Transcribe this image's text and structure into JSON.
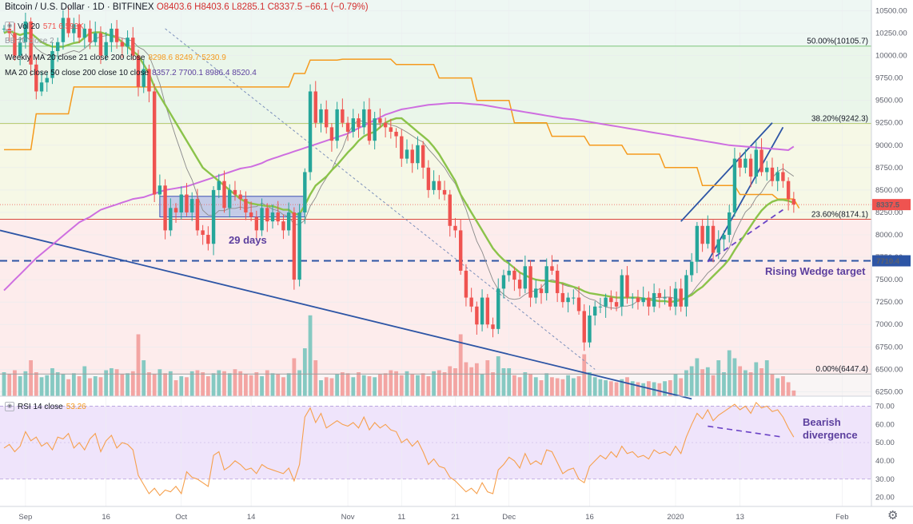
{
  "header": {
    "symbol": "Bitcoin / U.S. Dollar · 1D · BITFINEX",
    "open": "O8403.6",
    "high": "H8403.6",
    "low": "L8285.1",
    "close": "C8337.5",
    "change": "−66.1 (−0.79%)"
  },
  "indicators": [
    {
      "name": "Vol 20",
      "values": "571  6.593K"
    },
    {
      "name": "BB 20 close 2",
      "values": ""
    },
    {
      "name": "Weekly MA 20 close 21 close 200 close",
      "values": "8298.6  8249.7  5230.9"
    },
    {
      "name": "MA 20 close 50 close 200 close 10 close",
      "values": "8357.2  7700.1  8986.4  8520.4"
    }
  ],
  "rsi_legend": {
    "name": "RSI 14 close",
    "value": "53.26"
  },
  "annotations": {
    "days": "29 days",
    "wedge": "Rising Wedge target",
    "divergence_line1": "Bearish",
    "divergence_line2": "divergence"
  },
  "colors": {
    "up": "#26a69a",
    "down": "#ef5350",
    "ma20": "#8bc34a",
    "ma200": "#ce6ee0",
    "weekly": "#f59a1d",
    "trend": "#2d55a5",
    "rsi": "#f6a04d",
    "accent": "#5c3f9e"
  },
  "chart_data": {
    "type": "candlestick",
    "title": "Bitcoin / U.S. Dollar · 1D · BITFINEX",
    "y_axis": {
      "ylim": [
        6200,
        10620
      ],
      "ticks": [
        "10500.00",
        "10250.00",
        "10000.00",
        "9750.00",
        "9500.00",
        "9250.00",
        "9000.00",
        "8750.00",
        "8500.00",
        "8250.00",
        "8000.00",
        "7750.00",
        "7500.00",
        "7250.00",
        "7000.00",
        "6750.00",
        "6500.00",
        "6250.00"
      ]
    },
    "x_axis": {
      "ticks": [
        {
          "label": "Sep",
          "bar": 4
        },
        {
          "label": "16",
          "bar": 19
        },
        {
          "label": "Oct",
          "bar": 33
        },
        {
          "label": "14",
          "bar": 46
        },
        {
          "label": "Nov",
          "bar": 64
        },
        {
          "label": "11",
          "bar": 74
        },
        {
          "label": "21",
          "bar": 84
        },
        {
          "label": "Dec",
          "bar": 94
        },
        {
          "label": "16",
          "bar": 109
        },
        {
          "label": "2020",
          "bar": 125
        },
        {
          "label": "13",
          "bar": 137
        },
        {
          "label": "Feb",
          "bar": 156
        }
      ]
    },
    "fibonacci": [
      {
        "label": "50.00%(10105.7)",
        "value": 10105.7
      },
      {
        "label": "38.20%(9242.3)",
        "value": 9242.3
      },
      {
        "label": "23.60%(8174.1)",
        "value": 8174.1
      },
      {
        "label": "0.00%(6447.4)",
        "value": 6447.4
      }
    ],
    "price_labels": [
      {
        "label": "8337.5",
        "value": 8337.5
      },
      {
        "label": "7710.4",
        "value": 7710.4
      }
    ],
    "close": [
      10300,
      10250,
      10000,
      10150,
      10380,
      9900,
      9600,
      9700,
      9750,
      10050,
      10150,
      10420,
      10250,
      10350,
      10200,
      10300,
      10150,
      10250,
      10000,
      10150,
      10300,
      10150,
      10100,
      10200,
      10000,
      9650,
      9850,
      9600,
      8450,
      8550,
      8050,
      8300,
      8250,
      8450,
      8250,
      8400,
      8050,
      8000,
      7900,
      8500,
      8600,
      8300,
      8500,
      8450,
      8400,
      8250,
      8200,
      8050,
      8300,
      8150,
      8250,
      8150,
      8050,
      8250,
      7500,
      8250,
      8700,
      9600,
      9250,
      9400,
      9200,
      9050,
      9400,
      9250,
      9150,
      9300,
      9200,
      9400,
      9050,
      9300,
      9250,
      9200,
      9150,
      9100,
      8850,
      8950,
      8800,
      9000,
      8750,
      8500,
      8600,
      8500,
      8450,
      8100,
      8050,
      7600,
      7300,
      7200,
      7000,
      7300,
      7000,
      6950,
      7400,
      7550,
      7600,
      7500,
      7400,
      7650,
      7300,
      7400,
      7350,
      7650,
      7600,
      7350,
      7250,
      7300,
      7300,
      7150,
      6800,
      7100,
      7200,
      7200,
      7300,
      7250,
      7200,
      7550,
      7300,
      7300,
      7250,
      7300,
      7200,
      7350,
      7300,
      7300,
      7200,
      7400,
      7200,
      7550,
      7700,
      8100,
      7900,
      8100,
      7800,
      7950,
      8000,
      8250,
      8850,
      8750,
      8850,
      8650,
      8950,
      8700,
      8750,
      8600,
      8700,
      8600,
      8400,
      8337.5
    ],
    "volume_ylim": [
      0,
      12000
    ],
    "volume": [
      2400,
      2200,
      2600,
      2000,
      2500,
      3600,
      2400,
      1900,
      2100,
      2800,
      2400,
      2200,
      1700,
      2300,
      2000,
      3000,
      1800,
      2000,
      1900,
      2600,
      2800,
      2700,
      2200,
      2300,
      2500,
      6200,
      3600,
      2400,
      2200,
      2700,
      2300,
      2500,
      1600,
      2000,
      1900,
      2500,
      2600,
      2400,
      2000,
      2300,
      2600,
      2500,
      2300,
      2700,
      2500,
      2200,
      2100,
      2400,
      2000,
      2600,
      2300,
      2200,
      1900,
      2300,
      3800,
      2600,
      4800,
      8100,
      3600,
      1600,
      1900,
      1800,
      2200,
      2400,
      2300,
      1900,
      2400,
      2100,
      2000,
      1900,
      2200,
      2300,
      2600,
      2500,
      2100,
      2500,
      2200,
      2100,
      2300,
      2000,
      2500,
      2600,
      2400,
      3000,
      2800,
      6200,
      3400,
      2900,
      3300,
      2200,
      3600,
      2400,
      4000,
      2800,
      2800,
      2100,
      1900,
      2400,
      2200,
      1900,
      1600,
      2300,
      1900,
      1800,
      1700,
      2100,
      1800,
      2000,
      4200,
      2400,
      1900,
      1700,
      1600,
      1500,
      1400,
      1700,
      1900,
      1500,
      1400,
      1300,
      1500,
      1400,
      1300,
      1500,
      1600,
      2200,
      1800,
      2600,
      3000,
      3800,
      2700,
      2900,
      2100,
      3600,
      2400,
      4600,
      3800,
      3000,
      2600,
      2400,
      3400,
      2800,
      3600,
      2200,
      1800,
      2000,
      1400,
      571
    ],
    "ma20": [
      10250,
      10280,
      10250,
      10230,
      10250,
      10250,
      10200,
      10150,
      10120,
      10100,
      10100,
      10100,
      10120,
      10140,
      10150,
      10200,
      10250,
      10260,
      10260,
      10240,
      10220,
      10200,
      10150,
      10100,
      10050,
      10000,
      9900,
      9800,
      9650,
      9550,
      9450,
      9350,
      9250,
      9150,
      9050,
      8950,
      8850,
      8750,
      8700,
      8650,
      8600,
      8550,
      8500,
      8450,
      8400,
      8370,
      8350,
      8340,
      8330,
      8320,
      8320,
      8300,
      8280,
      8280,
      8230,
      8230,
      8330,
      8450,
      8550,
      8600,
      8650,
      8720,
      8780,
      8850,
      8920,
      8980,
      9050,
      9100,
      9130,
      9150,
      9200,
      9250,
      9280,
      9300,
      9300,
      9250,
      9200,
      9150,
      9100,
      9050,
      8980,
      8900,
      8800,
      8700,
      8600,
      8450,
      8350,
      8250,
      8150,
      8050,
      7950,
      7850,
      7780,
      7720,
      7680,
      7630,
      7580,
      7550,
      7520,
      7500,
      7490,
      7490,
      7480,
      7470,
      7460,
      7440,
      7420,
      7400,
      7370,
      7350,
      7340,
      7330,
      7320,
      7310,
      7300,
      7300,
      7300,
      7300,
      7300,
      7290,
      7280,
      7270,
      7260,
      7260,
      7250,
      7260,
      7270,
      7300,
      7330,
      7380,
      7420,
      7480,
      7540,
      7600,
      7660,
      7730,
      7830,
      7920,
      8010,
      8100,
      8190,
      8270,
      8330,
      8370,
      8390,
      8390,
      8380,
      8357
    ],
    "ma200": [
      7380,
      7440,
      7500,
      7560,
      7620,
      7680,
      7740,
      7790,
      7840,
      7890,
      7940,
      7990,
      8040,
      8090,
      8140,
      8170,
      8200,
      8240,
      8280,
      8300,
      8320,
      8340,
      8360,
      8380,
      8400,
      8410,
      8420,
      8440,
      8460,
      8480,
      8500,
      8510,
      8520,
      8530,
      8540,
      8560,
      8580,
      8600,
      8620,
      8640,
      8660,
      8680,
      8700,
      8720,
      8740,
      8750,
      8760,
      8780,
      8800,
      8830,
      8850,
      8870,
      8890,
      8910,
      8930,
      8950,
      8970,
      8990,
      9010,
      9030,
      9050,
      9070,
      9090,
      9110,
      9130,
      9160,
      9190,
      9220,
      9250,
      9280,
      9310,
      9340,
      9360,
      9380,
      9400,
      9410,
      9420,
      9430,
      9440,
      9450,
      9455,
      9460,
      9465,
      9470,
      9470,
      9470,
      9465,
      9460,
      9455,
      9450,
      9440,
      9430,
      9420,
      9410,
      9400,
      9390,
      9380,
      9370,
      9360,
      9350,
      9340,
      9330,
      9320,
      9310,
      9300,
      9295,
      9290,
      9280,
      9270,
      9260,
      9250,
      9240,
      9230,
      9220,
      9210,
      9200,
      9190,
      9180,
      9170,
      9160,
      9150,
      9140,
      9130,
      9120,
      9110,
      9100,
      9090,
      9080,
      9070,
      9060,
      9050,
      9040,
      9030,
      9020,
      9010,
      9000,
      8995,
      8990,
      8985,
      8980,
      8975,
      8970,
      8965,
      8960,
      8955,
      8950,
      8945,
      8986
    ],
    "weekly_ma": [
      8950,
      8950,
      8950,
      8950,
      8950,
      8950,
      9350,
      9350,
      9350,
      9350,
      9350,
      9350,
      9350,
      9650,
      9650,
      9650,
      9650,
      9650,
      9650,
      9650,
      9650,
      9650,
      9650,
      9650,
      9650,
      9650,
      9650,
      9650,
      9650,
      9650,
      9650,
      9650,
      9650,
      9650,
      9650,
      9650,
      9650,
      9650,
      9650,
      9650,
      9650,
      9650,
      9650,
      9650,
      9650,
      9650,
      9650,
      9650,
      9650,
      9650,
      9650,
      9650,
      9650,
      9650,
      9800,
      9800,
      9800,
      9950,
      9950,
      9950,
      9950,
      9950,
      9950,
      9960,
      9960,
      9960,
      9960,
      9960,
      9960,
      9960,
      9960,
      9960,
      9960,
      9900,
      9900,
      9900,
      9900,
      9900,
      9900,
      9900,
      9900,
      9750,
      9750,
      9750,
      9750,
      9750,
      9750,
      9750,
      9500,
      9500,
      9500,
      9500,
      9500,
      9500,
      9500,
      9250,
      9250,
      9250,
      9250,
      9250,
      9250,
      9250,
      9100,
      9100,
      9100,
      9100,
      9100,
      9100,
      9100,
      9000,
      9000,
      9000,
      9000,
      9000,
      9000,
      9000,
      8900,
      8900,
      8900,
      8900,
      8900,
      8900,
      8900,
      8750,
      8750,
      8750,
      8750,
      8750,
      8750,
      8750,
      8550,
      8550,
      8550,
      8550,
      8550,
      8550,
      8550,
      8450,
      8450,
      8450,
      8450,
      8450,
      8450,
      8450,
      8400,
      8400,
      8400,
      8400,
      8298
    ],
    "rsi_ylim": [
      15,
      75
    ],
    "rsi_ticks": [
      "70.00",
      "60.00",
      "50.00",
      "40.00",
      "30.00",
      "20.00"
    ],
    "rsi": [
      47,
      49,
      45,
      48,
      56,
      51,
      53,
      48,
      50,
      46,
      53,
      52,
      55,
      47,
      50,
      46,
      52,
      55,
      45,
      51,
      54,
      47,
      50,
      49,
      46,
      32,
      27,
      22,
      25,
      21,
      24,
      23,
      26,
      22,
      34,
      31,
      30,
      28,
      26,
      43,
      45,
      35,
      37,
      40,
      38,
      35,
      36,
      33,
      38,
      36,
      35,
      34,
      33,
      36,
      29,
      38,
      64,
      69,
      61,
      66,
      58,
      60,
      62,
      60,
      59,
      61,
      58,
      64,
      57,
      61,
      58,
      60,
      57,
      56,
      50,
      52,
      48,
      51,
      45,
      38,
      41,
      37,
      36,
      31,
      29,
      26,
      23,
      25,
      22,
      28,
      23,
      22,
      35,
      38,
      42,
      40,
      36,
      44,
      38,
      40,
      38,
      46,
      45,
      39,
      33,
      35,
      36,
      30,
      28,
      37,
      40,
      43,
      41,
      45,
      42,
      48,
      44,
      45,
      42,
      43,
      41,
      46,
      44,
      45,
      43,
      48,
      44,
      53,
      60,
      66,
      63,
      68,
      62,
      65,
      67,
      69,
      71,
      68,
      70,
      66,
      72,
      69,
      70,
      67,
      68,
      64,
      58,
      53
    ]
  }
}
